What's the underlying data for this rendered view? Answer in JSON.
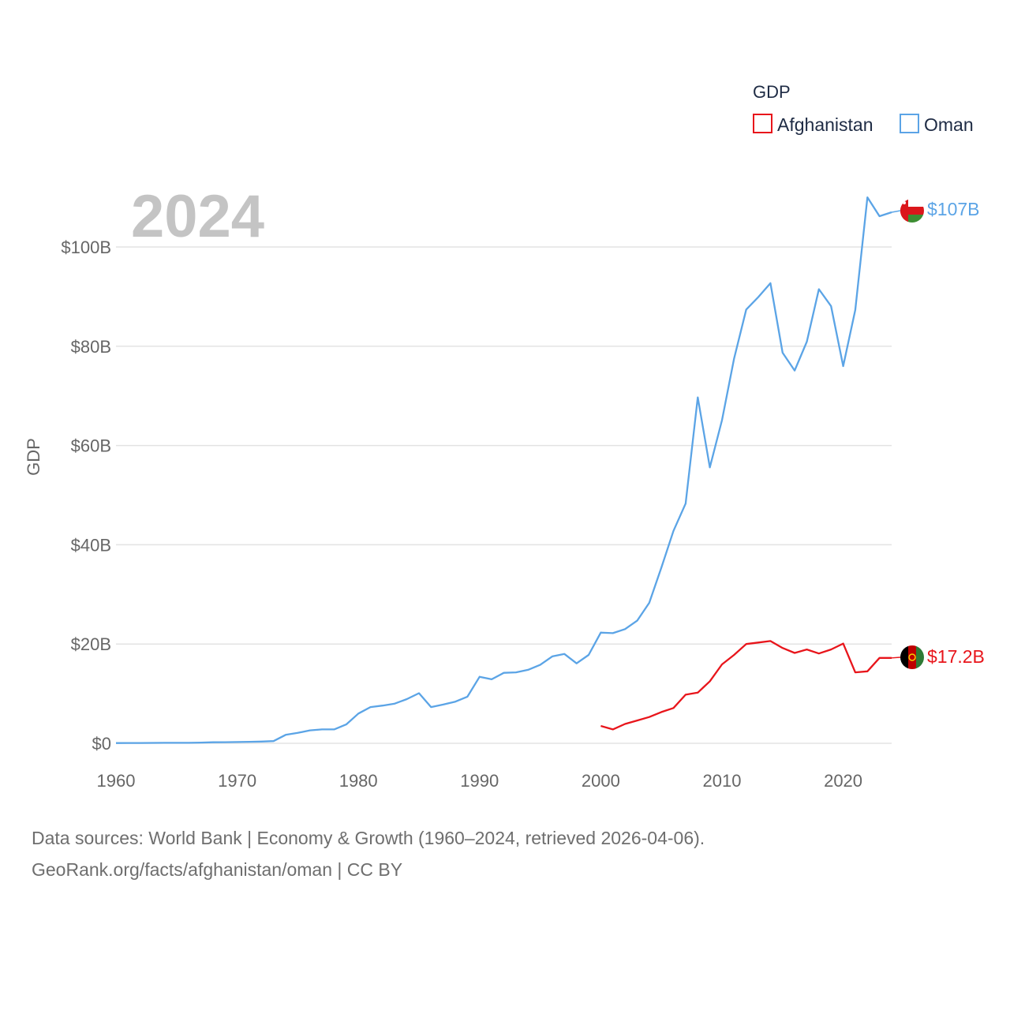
{
  "chart_data": {
    "type": "line",
    "year_label": "2024",
    "ylabel": "GDP",
    "xlabel": "",
    "xlim": [
      1960,
      2024
    ],
    "ylim": [
      0,
      100
    ],
    "y_unit": "billion USD",
    "x_ticks": [
      1960,
      1970,
      1980,
      1990,
      2000,
      2010,
      2020
    ],
    "x_tick_labels": [
      "1960",
      "1970",
      "1980",
      "1990",
      "2000",
      "2010",
      "2020"
    ],
    "y_ticks": [
      0,
      20,
      40,
      60,
      80,
      100
    ],
    "y_tick_labels": [
      "$0",
      "$20B",
      "$40B",
      "$60B",
      "$80B",
      "$100B"
    ],
    "grid": true,
    "legend": {
      "title": "GDP",
      "position": "top-right",
      "entries": [
        "Afghanistan",
        "Oman"
      ]
    },
    "series": [
      {
        "name": "Afghanistan",
        "color": "#e8151b",
        "end_label": "$17.2B",
        "flag": "afghanistan-flag",
        "x": [
          2000,
          2001,
          2002,
          2003,
          2004,
          2005,
          2006,
          2007,
          2008,
          2009,
          2010,
          2011,
          2012,
          2013,
          2014,
          2015,
          2016,
          2017,
          2018,
          2019,
          2020,
          2021,
          2022,
          2023,
          2024
        ],
        "values": [
          3.5,
          2.8,
          3.9,
          4.6,
          5.3,
          6.3,
          7.1,
          9.8,
          10.2,
          12.5,
          15.9,
          17.8,
          20.0,
          20.3,
          20.6,
          19.2,
          18.2,
          18.9,
          18.1,
          18.9,
          20.1,
          14.3,
          14.5,
          17.2,
          17.2
        ]
      },
      {
        "name": "Oman",
        "color": "#5ba4e6",
        "end_label": "$107B",
        "flag": "oman-flag",
        "x": [
          1960,
          1961,
          1962,
          1963,
          1964,
          1965,
          1966,
          1967,
          1968,
          1969,
          1970,
          1971,
          1972,
          1973,
          1974,
          1975,
          1976,
          1977,
          1978,
          1979,
          1980,
          1981,
          1982,
          1983,
          1984,
          1985,
          1986,
          1987,
          1988,
          1989,
          1990,
          1991,
          1992,
          1993,
          1994,
          1995,
          1996,
          1997,
          1998,
          1999,
          2000,
          2001,
          2002,
          2003,
          2004,
          2005,
          2006,
          2007,
          2008,
          2009,
          2010,
          2011,
          2012,
          2013,
          2014,
          2015,
          2016,
          2017,
          2018,
          2019,
          2020,
          2021,
          2022,
          2023,
          2024
        ],
        "values": [
          0.05,
          0.06,
          0.07,
          0.08,
          0.09,
          0.09,
          0.1,
          0.15,
          0.2,
          0.22,
          0.26,
          0.3,
          0.35,
          0.45,
          1.7,
          2.1,
          2.6,
          2.8,
          2.8,
          3.8,
          6.0,
          7.3,
          7.6,
          8.0,
          8.9,
          10.1,
          7.3,
          7.8,
          8.4,
          9.4,
          13.4,
          12.9,
          14.2,
          14.3,
          14.8,
          15.8,
          17.5,
          18.0,
          16.1,
          17.8,
          22.3,
          22.2,
          23.0,
          24.7,
          28.3,
          35.4,
          42.8,
          48.3,
          69.7,
          55.6,
          65.1,
          77.5,
          87.4,
          89.9,
          92.7,
          78.7,
          75.1,
          80.9,
          91.5,
          88.1,
          76.0,
          87.3,
          110.0,
          106.2,
          107.0
        ]
      }
    ]
  },
  "footer": {
    "line1": "Data sources: World Bank | Economy & Growth (1960–2024, retrieved 2026-04-06).",
    "line2": "GeoRank.org/facts/afghanistan/oman | CC BY"
  }
}
